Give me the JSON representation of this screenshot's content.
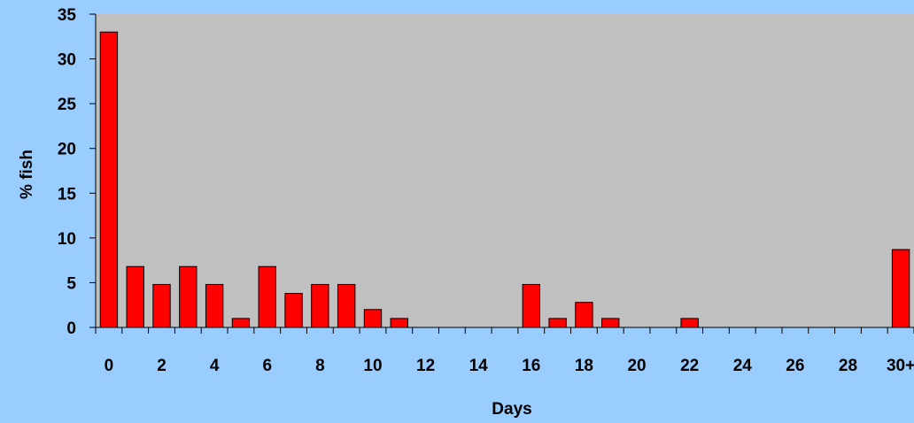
{
  "chart_data": {
    "type": "bar",
    "title": "",
    "xlabel": "Days",
    "ylabel": "% fish",
    "ylim": [
      0,
      35
    ],
    "yticks": [
      "0",
      "5",
      "10",
      "15",
      "20",
      "25",
      "30",
      "35"
    ],
    "categories": [
      "0",
      "1",
      "2",
      "3",
      "4",
      "5",
      "6",
      "7",
      "8",
      "9",
      "10",
      "11",
      "12",
      "13",
      "14",
      "15",
      "16",
      "17",
      "18",
      "19",
      "20",
      "21",
      "22",
      "23",
      "24",
      "25",
      "26",
      "27",
      "28",
      "29",
      "30+"
    ],
    "xtick_labels": [
      "0",
      "2",
      "4",
      "6",
      "8",
      "10",
      "12",
      "14",
      "16",
      "18",
      "20",
      "22",
      "24",
      "26",
      "28",
      "30+"
    ],
    "values": [
      33,
      6.8,
      4.8,
      6.8,
      4.8,
      1,
      6.8,
      3.8,
      4.8,
      4.8,
      2,
      1,
      0,
      0,
      0,
      0,
      4.8,
      1,
      2.8,
      1,
      0,
      0,
      1,
      0,
      0,
      0,
      0,
      0,
      0,
      0,
      8.7
    ],
    "grid": false,
    "legend": "none",
    "colors": {
      "background": "#99ccff",
      "plot_area": "#c0c0c0",
      "bar_fill": "#ff0000",
      "bar_stroke": "#000000",
      "axis": "#000000"
    }
  }
}
